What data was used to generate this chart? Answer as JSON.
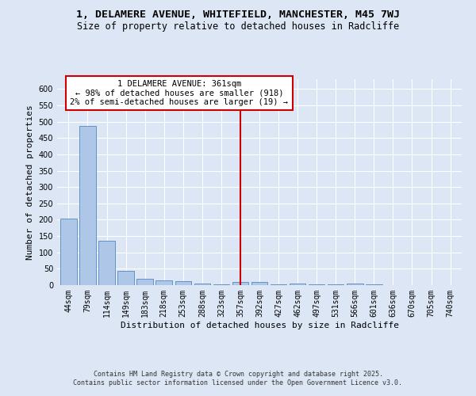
{
  "title_line1": "1, DELAMERE AVENUE, WHITEFIELD, MANCHESTER, M45 7WJ",
  "title_line2": "Size of property relative to detached houses in Radcliffe",
  "xlabel": "Distribution of detached houses by size in Radcliffe",
  "ylabel": "Number of detached properties",
  "categories": [
    "44sqm",
    "79sqm",
    "114sqm",
    "149sqm",
    "183sqm",
    "218sqm",
    "253sqm",
    "288sqm",
    "323sqm",
    "357sqm",
    "392sqm",
    "427sqm",
    "462sqm",
    "497sqm",
    "531sqm",
    "566sqm",
    "601sqm",
    "636sqm",
    "670sqm",
    "705sqm",
    "740sqm"
  ],
  "values": [
    203,
    487,
    135,
    44,
    20,
    15,
    11,
    5,
    2,
    10,
    10,
    2,
    5,
    2,
    2,
    6,
    2,
    1,
    0,
    1,
    0
  ],
  "bar_color": "#aec6e8",
  "bar_edge_color": "#5588bb",
  "highlight_index": 9,
  "highlight_line_color": "#cc0000",
  "annotation_line1": "1 DELAMERE AVENUE: 361sqm",
  "annotation_line2": "← 98% of detached houses are smaller (918)",
  "annotation_line3": "2% of semi-detached houses are larger (19) →",
  "annotation_box_facecolor": "#ffffff",
  "annotation_box_edgecolor": "#cc0000",
  "background_color": "#dce6f5",
  "plot_bg_color": "#dce6f5",
  "grid_color": "#ffffff",
  "ylim": [
    0,
    630
  ],
  "yticks": [
    0,
    50,
    100,
    150,
    200,
    250,
    300,
    350,
    400,
    450,
    500,
    550,
    600
  ],
  "footer_line1": "Contains HM Land Registry data © Crown copyright and database right 2025.",
  "footer_line2": "Contains public sector information licensed under the Open Government Licence v3.0.",
  "title_fontsize": 9.5,
  "subtitle_fontsize": 8.5,
  "axis_label_fontsize": 8,
  "tick_fontsize": 7,
  "annotation_fontsize": 7.5,
  "footer_fontsize": 6
}
